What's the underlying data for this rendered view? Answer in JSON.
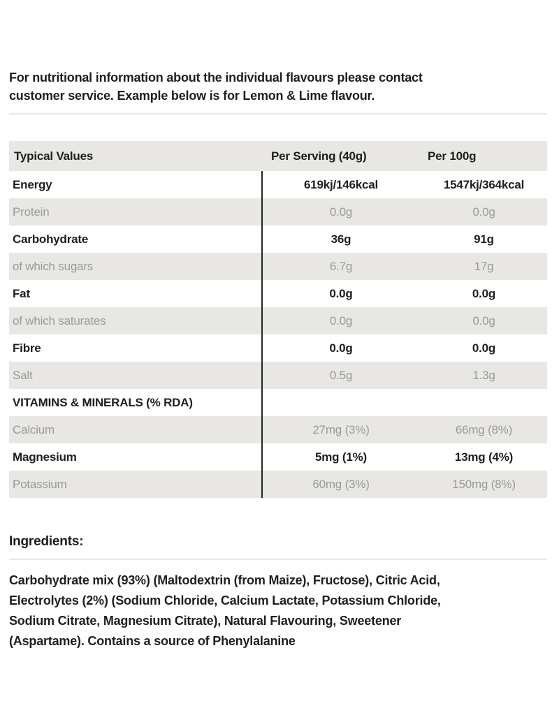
{
  "intro": {
    "text": "For nutritional information about the individual flavours please contact customer service. Example below is for Lemon & Lime flavour."
  },
  "nutrition_table": {
    "headers": {
      "col1": "Typical Values",
      "col2": "Per Serving (40g)",
      "col3": "Per 100g"
    },
    "rows": [
      {
        "label": "Energy",
        "per_serving": "619kj/146kcal",
        "per_100g": "1547kj/364kcal",
        "style": "strong"
      },
      {
        "label": "Protein",
        "per_serving": "0.0g",
        "per_100g": "0.0g",
        "style": "muted"
      },
      {
        "label": "Carbohydrate",
        "per_serving": "36g",
        "per_100g": "91g",
        "style": "strong"
      },
      {
        "label": "of which sugars",
        "per_serving": "6.7g",
        "per_100g": "17g",
        "style": "muted"
      },
      {
        "label": "Fat",
        "per_serving": "0.0g",
        "per_100g": "0.0g",
        "style": "strong"
      },
      {
        "label": "of which saturates",
        "per_serving": "0.0g",
        "per_100g": "0.0g",
        "style": "muted"
      },
      {
        "label": "Fibre",
        "per_serving": "0.0g",
        "per_100g": "0.0g",
        "style": "strong"
      },
      {
        "label": "Salt",
        "per_serving": "0.5g",
        "per_100g": "1.3g",
        "style": "muted"
      },
      {
        "label": "VITAMINS & MINERALS (% RDA)",
        "per_serving": "",
        "per_100g": "",
        "style": "section"
      },
      {
        "label": "Calcium",
        "per_serving": "27mg (3%)",
        "per_100g": "66mg (8%)",
        "style": "muted"
      },
      {
        "label": "Magnesium",
        "per_serving": "5mg (1%)",
        "per_100g": "13mg (4%)",
        "style": "strong"
      },
      {
        "label": "Potassium",
        "per_serving": "60mg (3%)",
        "per_100g": "150mg (8%)",
        "style": "muted"
      }
    ]
  },
  "ingredients": {
    "heading": "Ingredients:",
    "text": "Carbohydrate mix (93%) (Maltodextrin (from Maize), Fructose), Citric Acid, Electrolytes (2%) (Sodium Chloride, Calcium Lactate, Potassium Chloride, Sodium Citrate, Magnesium Citrate), Natural Flavouring, Sweetener (Aspartame). Contains a source of Phenylalanine"
  },
  "colors": {
    "stripe": "#e8e7e3",
    "muted_text": "#9a9a97",
    "text": "#1e1e1c"
  }
}
